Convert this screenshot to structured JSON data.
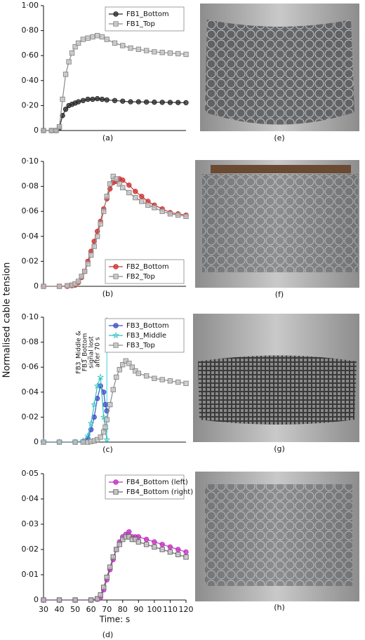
{
  "figure": {
    "ylabel": "Normalised cable tension",
    "photo_labels": [
      "(e)",
      "(f)",
      "(g)",
      "(h)"
    ]
  },
  "chart_data": [
    {
      "type": "line",
      "caption": "(a)",
      "xlim": [
        30,
        120
      ],
      "ylim": [
        0,
        1
      ],
      "yticks": [
        0,
        {
          "value": 0.2,
          "label": "0·20"
        },
        {
          "value": 0.4,
          "label": "0·40"
        },
        {
          "value": 0.6,
          "label": "0·60"
        },
        {
          "value": 0.8,
          "label": "0·80"
        },
        {
          "value": 1,
          "label": "1·00"
        }
      ],
      "legend": "upper right",
      "x": [
        30,
        35,
        38,
        40,
        42,
        44,
        46,
        48,
        50,
        52,
        55,
        58,
        61,
        64,
        67,
        70,
        75,
        80,
        85,
        90,
        95,
        100,
        105,
        110,
        115,
        120
      ],
      "series": [
        {
          "name": "FB1_Bottom",
          "color": "#2a2a2a",
          "marker": "circle",
          "values": [
            0,
            0,
            0,
            0.02,
            0.12,
            0.17,
            0.2,
            0.21,
            0.22,
            0.23,
            0.24,
            0.25,
            0.25,
            0.255,
            0.25,
            0.245,
            0.24,
            0.235,
            0.23,
            0.23,
            0.228,
            0.227,
            0.226,
            0.225,
            0.224,
            0.223
          ]
        },
        {
          "name": "FB1_Top",
          "color": "#8a8a8a",
          "marker": "square",
          "values": [
            0,
            0,
            0,
            0.03,
            0.25,
            0.45,
            0.55,
            0.62,
            0.67,
            0.7,
            0.73,
            0.74,
            0.75,
            0.76,
            0.75,
            0.73,
            0.7,
            0.68,
            0.66,
            0.65,
            0.64,
            0.63,
            0.625,
            0.62,
            0.615,
            0.61
          ]
        }
      ]
    },
    {
      "type": "line",
      "caption": "(b)",
      "xlim": [
        30,
        120
      ],
      "ylim": [
        0,
        0.1
      ],
      "yticks": [
        0,
        {
          "value": 0.02,
          "label": "0·02"
        },
        {
          "value": 0.04,
          "label": "0·04"
        },
        {
          "value": 0.06,
          "label": "0·06"
        },
        {
          "value": 0.08,
          "label": "0·08"
        },
        {
          "value": 0.1,
          "label": "0·10"
        }
      ],
      "legend": "lower right",
      "x": [
        30,
        40,
        45,
        48,
        50,
        52,
        54,
        56,
        58,
        60,
        62,
        64,
        66,
        68,
        70,
        72,
        74,
        76,
        78,
        80,
        84,
        88,
        92,
        96,
        100,
        105,
        110,
        115,
        120
      ],
      "series": [
        {
          "name": "FB2_Bottom",
          "color": "#d03030",
          "marker": "circle",
          "values": [
            0,
            0,
            0,
            0.0005,
            0.001,
            0.003,
            0.007,
            0.012,
            0.02,
            0.028,
            0.036,
            0.044,
            0.052,
            0.062,
            0.07,
            0.078,
            0.083,
            0.084,
            0.086,
            0.085,
            0.081,
            0.076,
            0.072,
            0.068,
            0.065,
            0.062,
            0.059,
            0.058,
            0.057
          ]
        },
        {
          "name": "FB2_Top",
          "color": "#8a8a8a",
          "marker": "square",
          "values": [
            0,
            0,
            0.0005,
            0.001,
            0.002,
            0.004,
            0.008,
            0.012,
            0.018,
            0.025,
            0.032,
            0.04,
            0.05,
            0.06,
            0.072,
            0.082,
            0.088,
            0.086,
            0.082,
            0.079,
            0.075,
            0.071,
            0.068,
            0.065,
            0.063,
            0.06,
            0.058,
            0.057,
            0.056
          ]
        }
      ]
    },
    {
      "type": "line",
      "caption": "(c)",
      "xlim": [
        30,
        120
      ],
      "ylim": [
        0,
        0.1
      ],
      "yticks": [
        0,
        {
          "value": 0.02,
          "label": "0·02"
        },
        {
          "value": 0.04,
          "label": "0·04"
        },
        {
          "value": 0.06,
          "label": "0·06"
        },
        {
          "value": 0.08,
          "label": "0·08"
        },
        {
          "value": 0.1,
          "label": "0·10"
        }
      ],
      "legend": "upper right",
      "vline": {
        "x": 70,
        "color": "#40d0e0"
      },
      "annotation": {
        "lines": [
          "FB3_Middle &",
          "FB3_Bottom",
          "signal lost",
          "after 70 s"
        ],
        "color": "#c020c0"
      },
      "x": [
        30,
        40,
        50,
        55,
        58,
        60,
        62,
        64,
        66,
        68,
        69,
        70,
        72,
        74,
        76,
        78,
        80,
        82,
        84,
        86,
        88,
        90,
        95,
        100,
        105,
        110,
        115,
        120
      ],
      "series": [
        {
          "name": "FB3_Bottom",
          "color": "#4050c8",
          "marker": "circle",
          "values": [
            0,
            0,
            0,
            0.0005,
            0.003,
            0.01,
            0.02,
            0.035,
            0.045,
            0.04,
            0.03,
            0.025,
            null,
            null,
            null,
            null,
            null,
            null,
            null,
            null,
            null,
            null,
            null,
            null,
            null,
            null,
            null,
            null
          ]
        },
        {
          "name": "FB3_Middle",
          "color": "#30c0c0",
          "marker": "star",
          "values": [
            0,
            0,
            0,
            0.001,
            0.005,
            0.015,
            0.03,
            0.045,
            0.052,
            0.02,
            0.01,
            0.002,
            null,
            null,
            null,
            null,
            null,
            null,
            null,
            null,
            null,
            null,
            null,
            null,
            null,
            null,
            null,
            null
          ]
        },
        {
          "name": "FB3_Top",
          "color": "#8a8a8a",
          "marker": "square",
          "values": [
            0,
            0,
            0,
            0,
            0,
            0.0005,
            0.001,
            0.002,
            0.004,
            0.008,
            0.012,
            0.018,
            0.03,
            0.042,
            0.052,
            0.058,
            0.062,
            0.065,
            0.063,
            0.06,
            0.057,
            0.055,
            0.053,
            0.051,
            0.05,
            0.049,
            0.048,
            0.047
          ]
        }
      ]
    },
    {
      "type": "line",
      "caption": "(d)",
      "xlabel": "Time: s",
      "xlim": [
        30,
        120
      ],
      "xticks": [
        30,
        40,
        50,
        60,
        70,
        80,
        90,
        100,
        110,
        120
      ],
      "ylim": [
        0,
        0.05
      ],
      "yticks": [
        0,
        {
          "value": 0.01,
          "label": "0·01"
        },
        {
          "value": 0.02,
          "label": "0·02"
        },
        {
          "value": 0.03,
          "label": "0·03"
        },
        {
          "value": 0.04,
          "label": "0·04"
        },
        {
          "value": 0.05,
          "label": "0·05"
        }
      ],
      "legend": "upper right",
      "x": [
        30,
        40,
        50,
        60,
        64,
        66,
        68,
        70,
        72,
        74,
        76,
        78,
        80,
        82,
        84,
        86,
        88,
        90,
        95,
        100,
        105,
        110,
        115,
        120
      ],
      "series": [
        {
          "name": "FB4_Bottom (left)",
          "color": "#c030c0",
          "marker": "circle",
          "values": [
            0,
            0,
            0,
            0,
            0.0003,
            0.001,
            0.004,
            0.008,
            0.012,
            0.016,
            0.02,
            0.023,
            0.025,
            0.026,
            0.027,
            0.025,
            0.025,
            0.025,
            0.024,
            0.023,
            0.022,
            0.021,
            0.02,
            0.019
          ]
        },
        {
          "name": "FB4_Bottom (right)",
          "color": "#6a6a6a",
          "marker": "square",
          "values": [
            0,
            0,
            0,
            0,
            0.0005,
            0.002,
            0.005,
            0.009,
            0.013,
            0.017,
            0.02,
            0.022,
            0.024,
            0.025,
            0.025,
            0.024,
            0.024,
            0.023,
            0.022,
            0.021,
            0.02,
            0.019,
            0.018,
            0.017
          ]
        }
      ]
    }
  ]
}
